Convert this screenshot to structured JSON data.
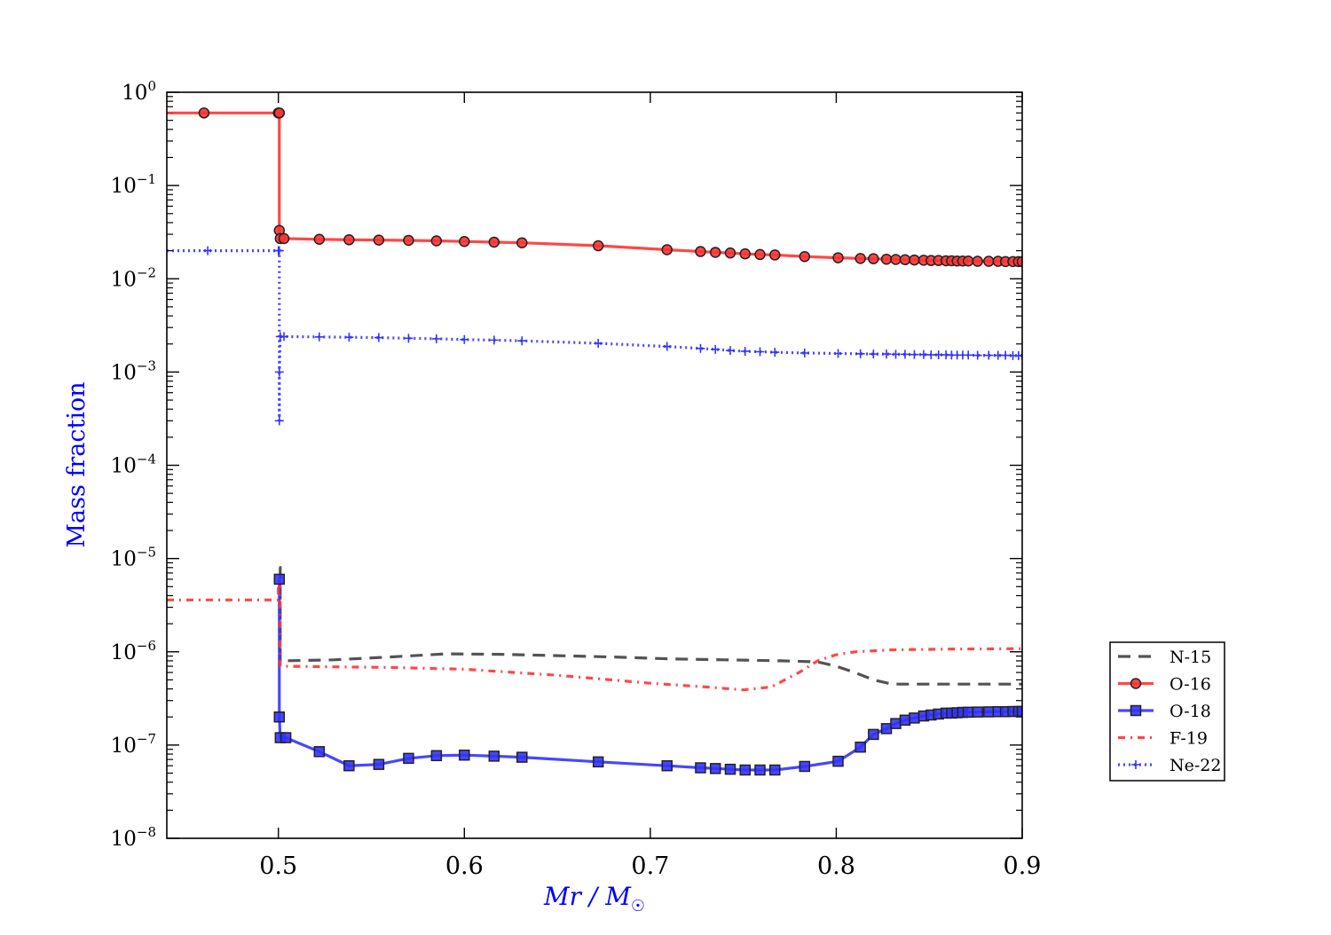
{
  "chart_data": {
    "type": "line",
    "title": "",
    "xlabel": "Mr / M",
    "xlabel_sub": "☉",
    "ylabel": "Mass fraction",
    "xlim": [
      0.44,
      0.9
    ],
    "ylim": [
      1e-08,
      1
    ],
    "yscale": "log",
    "grid": false,
    "legend_position": "outside-right",
    "label_color": "#0000ff",
    "x_ticks": [
      0.5,
      0.6,
      0.7,
      0.8,
      0.9
    ],
    "x_tick_labels": [
      "0.5",
      "0.6",
      "0.7",
      "0.8",
      "0.9"
    ],
    "y_ticks": [
      1e-08,
      1e-07,
      1e-06,
      1e-05,
      0.0001,
      0.001,
      0.01,
      0.1,
      1
    ],
    "y_tick_labels": [
      {
        "base": "10",
        "exp": "−8"
      },
      {
        "base": "10",
        "exp": "−7"
      },
      {
        "base": "10",
        "exp": "−6"
      },
      {
        "base": "10",
        "exp": "−5"
      },
      {
        "base": "10",
        "exp": "−4"
      },
      {
        "base": "10",
        "exp": "−3"
      },
      {
        "base": "10",
        "exp": "−2"
      },
      {
        "base": "10",
        "exp": "−1"
      },
      {
        "base": "10",
        "exp": "0"
      }
    ],
    "series": [
      {
        "name": "N-15",
        "color": "#404040",
        "dash": "14,9",
        "marker": "none",
        "x": [
          0.44,
          0.5004,
          0.5004,
          0.501,
          0.501,
          0.503,
          0.53,
          0.56,
          0.59,
          0.62,
          0.65,
          0.68,
          0.71,
          0.74,
          0.77,
          0.79,
          0.8,
          0.81,
          0.82,
          0.83,
          0.84,
          0.86,
          0.9
        ],
        "y": [
          null,
          null,
          8e-06,
          8e-06,
          8e-07,
          8e-07,
          8.2e-07,
          8.8e-07,
          9.5e-07,
          9.4e-07,
          9.1e-07,
          8.8e-07,
          8.4e-07,
          8.2e-07,
          8e-07,
          7.8e-07,
          7e-07,
          6e-07,
          5e-07,
          4.5e-07,
          4.5e-07,
          4.5e-07,
          4.5e-07
        ]
      },
      {
        "name": "O-16",
        "color": "#ff3333",
        "dash": "",
        "marker": "circle",
        "x": [
          0.44,
          0.46,
          0.5,
          0.5005,
          0.5005,
          0.501,
          0.503,
          0.522,
          0.538,
          0.554,
          0.57,
          0.585,
          0.6,
          0.616,
          0.631,
          0.672,
          0.709,
          0.727,
          0.735,
          0.743,
          0.751,
          0.759,
          0.767,
          0.783,
          0.801,
          0.813,
          0.82,
          0.827,
          0.832,
          0.837,
          0.842,
          0.847,
          0.851,
          0.855,
          0.859,
          0.862,
          0.865,
          0.868,
          0.871,
          0.876,
          0.882,
          0.887,
          0.891,
          0.895,
          0.898,
          0.9
        ],
        "y": [
          0.6,
          0.6,
          0.6,
          0.6,
          0.033,
          0.027,
          0.027,
          0.0265,
          0.0262,
          0.026,
          0.0258,
          0.0255,
          0.0251,
          0.0247,
          0.0243,
          0.0226,
          0.0205,
          0.0196,
          0.0192,
          0.0189,
          0.0185,
          0.0182,
          0.018,
          0.0173,
          0.0168,
          0.0165,
          0.0164,
          0.0162,
          0.0161,
          0.016,
          0.0159,
          0.0158,
          0.0157,
          0.0157,
          0.0156,
          0.0156,
          0.0155,
          0.0155,
          0.0155,
          0.0154,
          0.0154,
          0.0154,
          0.0153,
          0.0153,
          0.0153,
          0.0153
        ]
      },
      {
        "name": "O-18",
        "color": "#3333ff",
        "dash": "",
        "marker": "square",
        "x": [
          0.5005,
          0.5005,
          0.501,
          0.504,
          0.522,
          0.538,
          0.554,
          0.57,
          0.585,
          0.6,
          0.616,
          0.631,
          0.672,
          0.709,
          0.727,
          0.735,
          0.743,
          0.751,
          0.759,
          0.767,
          0.783,
          0.801,
          0.813,
          0.82,
          0.827,
          0.832,
          0.837,
          0.842,
          0.847,
          0.851,
          0.855,
          0.859,
          0.862,
          0.865,
          0.868,
          0.871,
          0.876,
          0.882,
          0.887,
          0.891,
          0.895,
          0.898,
          0.9
        ],
        "y": [
          6e-06,
          2e-07,
          1.2e-07,
          1.2e-07,
          8.5e-08,
          6e-08,
          6.2e-08,
          7.2e-08,
          7.7e-08,
          7.8e-08,
          7.6e-08,
          7.4e-08,
          6.6e-08,
          6e-08,
          5.7e-08,
          5.6e-08,
          5.5e-08,
          5.4e-08,
          5.4e-08,
          5.4e-08,
          5.9e-08,
          6.7e-08,
          9.5e-08,
          1.3e-07,
          1.5e-07,
          1.7e-07,
          1.85e-07,
          1.95e-07,
          2.05e-07,
          2.1e-07,
          2.15e-07,
          2.2e-07,
          2.2e-07,
          2.22e-07,
          2.24e-07,
          2.25e-07,
          2.26e-07,
          2.27e-07,
          2.28e-07,
          2.28e-07,
          2.29e-07,
          2.29e-07,
          2.3e-07
        ]
      },
      {
        "name": "F-19",
        "color": "#ff3333",
        "dash": "8,6,2,6",
        "marker": "none",
        "x": [
          0.44,
          0.5,
          0.5,
          0.501,
          0.501,
          0.503,
          0.53,
          0.56,
          0.6,
          0.65,
          0.7,
          0.73,
          0.75,
          0.765,
          0.78,
          0.79,
          0.8,
          0.81,
          0.83,
          0.86,
          0.9
        ],
        "y": [
          3.6e-06,
          3.6e-06,
          6e-06,
          6e-06,
          7e-07,
          7e-07,
          6.9e-07,
          6.8e-07,
          6.5e-07,
          5.6e-07,
          4.6e-07,
          4.2e-07,
          3.9e-07,
          4.2e-07,
          6e-07,
          8e-07,
          9.3e-07,
          1e-06,
          1.05e-06,
          1.07e-06,
          1.08e-06
        ]
      },
      {
        "name": "Ne-22",
        "color": "#3333ff",
        "dash": "2,4",
        "marker": "plus",
        "x": [
          0.44,
          0.462,
          0.5,
          0.5005,
          0.5005,
          0.5005,
          0.501,
          0.503,
          0.522,
          0.538,
          0.554,
          0.57,
          0.585,
          0.6,
          0.616,
          0.631,
          0.672,
          0.709,
          0.727,
          0.735,
          0.743,
          0.751,
          0.759,
          0.767,
          0.783,
          0.801,
          0.813,
          0.82,
          0.827,
          0.832,
          0.837,
          0.842,
          0.847,
          0.851,
          0.855,
          0.859,
          0.862,
          0.865,
          0.868,
          0.871,
          0.876,
          0.882,
          0.887,
          0.891,
          0.895,
          0.898,
          0.9
        ],
        "y": [
          0.02,
          0.02,
          0.02,
          0.02,
          0.0003,
          0.001,
          0.0024,
          0.0024,
          0.00238,
          0.00236,
          0.00234,
          0.0023,
          0.00227,
          0.00223,
          0.0022,
          0.00216,
          0.00203,
          0.00188,
          0.00179,
          0.00175,
          0.0017,
          0.00167,
          0.00165,
          0.00163,
          0.0016,
          0.00158,
          0.00157,
          0.00156,
          0.00156,
          0.00155,
          0.00155,
          0.00154,
          0.00154,
          0.00153,
          0.00153,
          0.00153,
          0.00152,
          0.00152,
          0.00152,
          0.00152,
          0.00151,
          0.00151,
          0.00151,
          0.00151,
          0.0015,
          0.0015,
          0.0015
        ]
      }
    ]
  }
}
